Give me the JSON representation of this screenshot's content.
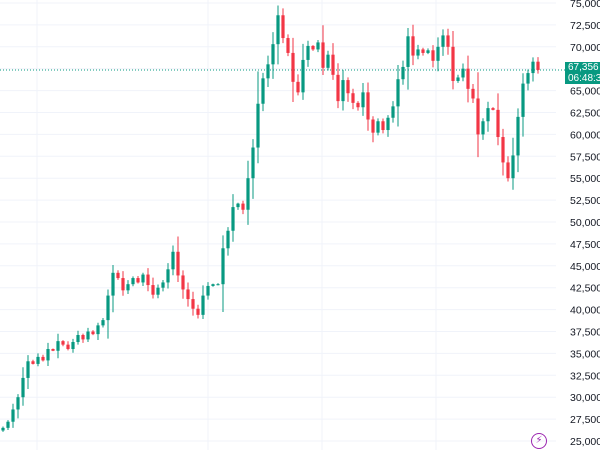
{
  "chart_data": {
    "type": "candlestick",
    "yaxis": {
      "ticks": [
        "25,000",
        "27,500",
        "30,000",
        "32,500",
        "35,000",
        "37,500",
        "40,000",
        "42,500",
        "45,000",
        "47,500",
        "50,000",
        "52,500",
        "55,000",
        "57,500",
        "60,000",
        "62,500",
        "65,000",
        "67,500",
        "70,000",
        "72,500",
        "75,000"
      ],
      "range": [
        25000,
        75000
      ],
      "position": "right"
    },
    "grid": true,
    "last_price": {
      "value": 67356,
      "label": "67,356",
      "countdown": "06:48:3",
      "color": "#089981"
    },
    "colors": {
      "up": "#089981",
      "down": "#f23645",
      "grid": "#f0f3fa"
    },
    "closes": [
      26500,
      27200,
      28600,
      30000,
      32200,
      34100,
      33800,
      34600,
      34200,
      35500,
      35300,
      36400,
      36000,
      35500,
      36300,
      37100,
      36600,
      37500,
      37200,
      38200,
      38800,
      41600,
      44200,
      43600,
      42200,
      42900,
      43600,
      43100,
      44000,
      42800,
      41700,
      42500,
      43100,
      44600,
      46600,
      43900,
      42300,
      41200,
      40100,
      39400,
      41600,
      42700,
      42900,
      42900,
      47000,
      49000,
      51700,
      52100,
      51400,
      55000,
      58500,
      63500,
      66400,
      68000,
      70300,
      73600,
      71000,
      69300,
      66000,
      64800,
      68500,
      70100,
      69700,
      70500,
      67600,
      69100,
      66800,
      63800,
      66200,
      64700,
      63600,
      63100,
      64800,
      61700,
      60200,
      61500,
      60500,
      61900,
      63200,
      66300,
      67700,
      71200,
      69000,
      69700,
      69300,
      69600,
      68400,
      70000,
      71300,
      70000,
      66100,
      66500,
      67500,
      65200,
      64100,
      60000,
      61500,
      63000,
      62800,
      59700,
      56800,
      55000,
      57600,
      62000,
      65800,
      67000,
      68300,
      67356
    ],
    "icon": "lightning-bolt-icon"
  }
}
